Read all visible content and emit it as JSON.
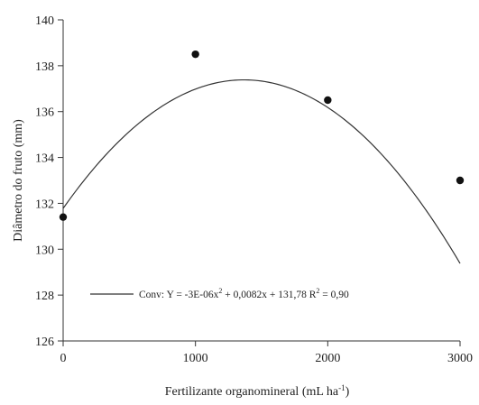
{
  "chart_data": {
    "type": "scatter",
    "xlabel": "Fertilizante organomineral (mL ha",
    "xlabel_sup": "-1",
    "xlabel_suffix": ")",
    "ylabel": "Diâmetro do fruto (mm)",
    "xlim": [
      0,
      3000
    ],
    "ylim": [
      126,
      140
    ],
    "xticks": [
      0,
      1000,
      2000,
      3000
    ],
    "yticks": [
      126,
      128,
      130,
      132,
      134,
      136,
      138,
      140
    ],
    "grid": false,
    "legend_position": "bottom-left",
    "series": [
      {
        "points": [
          {
            "x": 0,
            "y": 131.4
          },
          {
            "x": 1000,
            "y": 138.5
          },
          {
            "x": 2000,
            "y": 136.5
          },
          {
            "x": 3000,
            "y": 133.0
          }
        ]
      }
    ],
    "fit": {
      "type": "quadratic",
      "coefficients": {
        "a": -3e-06,
        "b": 0.0082,
        "c": 131.78
      },
      "label_prefix": "Conv: Y = -3E-06x",
      "label_sup": "2",
      "label_suffix": " + 0,0082x + 131,78 R",
      "label_sup2": "2",
      "label_end": " = 0,90"
    }
  }
}
